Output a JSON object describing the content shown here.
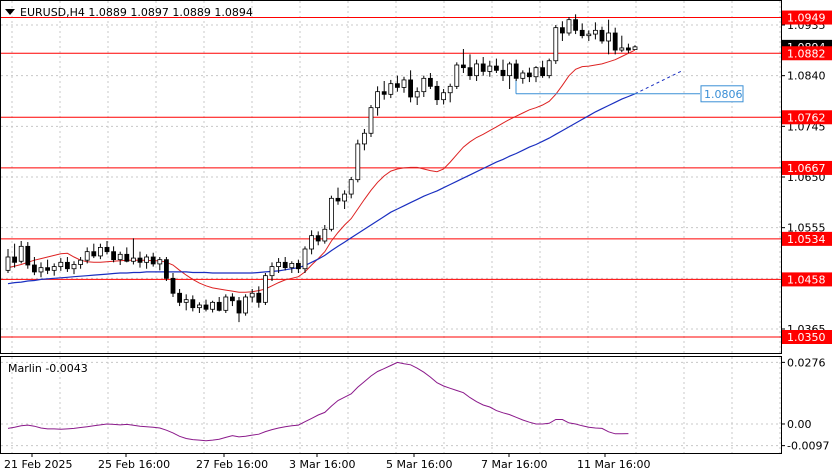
{
  "header": {
    "title": "EURUSD,H4 1.0889 1.0897 1.0889 1.0894"
  },
  "chart_data": [
    {
      "type": "candlestick",
      "symbol": "EURUSD",
      "timeframe": "H4",
      "ylim": [
        1.032,
        1.098
      ],
      "x_ticks": [
        "21 Feb 2025",
        "25 Feb 16:00",
        "27 Feb 16:00",
        "3 Mar 16:00",
        "5 Mar 16:00",
        "7 Mar 16:00",
        "11 Mar 16:00"
      ],
      "y_ticks": [
        "1.0935",
        "1.0840",
        "1.0745",
        "1.0650",
        "1.0555",
        "1.0460",
        "1.0365"
      ],
      "current_price": "1.0894",
      "levels": [
        {
          "value": 1.0949,
          "label": "1.0949"
        },
        {
          "value": 1.0882,
          "label": "1.0882"
        },
        {
          "value": 1.0762,
          "label": "1.0762"
        },
        {
          "value": 1.0667,
          "label": "1.0667"
        },
        {
          "value": 1.0534,
          "label": "1.0534"
        },
        {
          "value": 1.0458,
          "label": "1.0458"
        },
        {
          "value": 1.035,
          "label": "1.0350"
        }
      ],
      "blue_target": {
        "value": 1.0806,
        "label": "1.0806"
      },
      "colors": {
        "level": "#ff0000",
        "red_ma": "#dd2222",
        "blue_ma": "#1a2fc0",
        "oscillator": "#8b1a8b",
        "candle_up": "#ffffff",
        "candle_down": "#000000"
      },
      "candles": [
        [
          1.0475,
          1.0515,
          1.047,
          1.05
        ],
        [
          1.05,
          1.0525,
          1.048,
          1.049
        ],
        [
          1.0492,
          1.053,
          1.0488,
          1.052
        ],
        [
          1.052,
          1.0528,
          1.0478,
          1.0485
        ],
        [
          1.0485,
          1.05,
          1.0466,
          1.0472
        ],
        [
          1.0472,
          1.049,
          1.0462,
          1.048
        ],
        [
          1.048,
          1.0495,
          1.0468,
          1.0475
        ],
        [
          1.0475,
          1.0488,
          1.0465,
          1.0482
        ],
        [
          1.0482,
          1.0498,
          1.0474,
          1.049
        ],
        [
          1.049,
          1.05,
          1.0472,
          1.0478
        ],
        [
          1.0478,
          1.0492,
          1.0468,
          1.0486
        ],
        [
          1.0486,
          1.05,
          1.0478,
          1.0494
        ],
        [
          1.0494,
          1.0518,
          1.0488,
          1.051
        ],
        [
          1.051,
          1.0525,
          1.0498,
          1.0502
        ],
        [
          1.0502,
          1.0525,
          1.0496,
          1.0518
        ],
        [
          1.0518,
          1.053,
          1.0505,
          1.051
        ],
        [
          1.051,
          1.052,
          1.049,
          1.0495
        ],
        [
          1.0495,
          1.051,
          1.0485,
          1.0505
        ],
        [
          1.0505,
          1.0518,
          1.049,
          1.0492
        ],
        [
          1.0492,
          1.0535,
          1.0486,
          1.0498
        ],
        [
          1.0498,
          1.051,
          1.048,
          1.049
        ],
        [
          1.049,
          1.0505,
          1.0478,
          1.05
        ],
        [
          1.05,
          1.0508,
          1.0482,
          1.0487
        ],
        [
          1.0487,
          1.05,
          1.0475,
          1.0495
        ],
        [
          1.0495,
          1.05,
          1.0455,
          1.046
        ],
        [
          1.046,
          1.047,
          1.0425,
          1.0432
        ],
        [
          1.0432,
          1.044,
          1.0408,
          1.0415
        ],
        [
          1.0415,
          1.043,
          1.04,
          1.042
        ],
        [
          1.042,
          1.0428,
          1.0398,
          1.0405
        ],
        [
          1.0405,
          1.0415,
          1.0395,
          1.041
        ],
        [
          1.041,
          1.042,
          1.0398,
          1.0402
        ],
        [
          1.0402,
          1.0418,
          1.0396,
          1.0415
        ],
        [
          1.0415,
          1.0425,
          1.0398,
          1.04
        ],
        [
          1.04,
          1.043,
          1.0395,
          1.0425
        ],
        [
          1.0425,
          1.0432,
          1.0408,
          1.0418
        ],
        [
          1.0418,
          1.0425,
          1.0378,
          1.0395
        ],
        [
          1.0395,
          1.043,
          1.039,
          1.0425
        ],
        [
          1.0425,
          1.044,
          1.0415,
          1.0432
        ],
        [
          1.0432,
          1.0445,
          1.0405,
          1.0415
        ],
        [
          1.0415,
          1.047,
          1.041,
          1.0465
        ],
        [
          1.0465,
          1.049,
          1.0455,
          1.0482
        ],
        [
          1.0482,
          1.0498,
          1.047,
          1.049
        ],
        [
          1.049,
          1.05,
          1.0475,
          1.048
        ],
        [
          1.048,
          1.0492,
          1.047,
          1.0488
        ],
        [
          1.0488,
          1.0495,
          1.047,
          1.0478
        ],
        [
          1.0478,
          1.052,
          1.047,
          1.0515
        ],
        [
          1.0515,
          1.055,
          1.0505,
          1.054
        ],
        [
          1.054,
          1.0548,
          1.0522,
          1.053
        ],
        [
          1.053,
          1.056,
          1.0525,
          1.0552
        ],
        [
          1.0552,
          1.0615,
          1.0548,
          1.061
        ],
        [
          1.061,
          1.063,
          1.0598,
          1.0605
        ],
        [
          1.0605,
          1.0625,
          1.059,
          1.0618
        ],
        [
          1.0618,
          1.065,
          1.061,
          1.0645
        ],
        [
          1.0645,
          1.072,
          1.064,
          1.0712
        ],
        [
          1.0712,
          1.074,
          1.07,
          1.0732
        ],
        [
          1.0732,
          1.0785,
          1.0725,
          1.078
        ],
        [
          1.078,
          1.082,
          1.0765,
          1.081
        ],
        [
          1.081,
          1.083,
          1.0795,
          1.0805
        ],
        [
          1.0805,
          1.0832,
          1.0798,
          1.0825
        ],
        [
          1.0825,
          1.084,
          1.081,
          1.0818
        ],
        [
          1.0818,
          1.0838,
          1.0808,
          1.0832
        ],
        [
          1.0832,
          1.085,
          1.079,
          1.08
        ],
        [
          1.08,
          1.0818,
          1.0785,
          1.081
        ],
        [
          1.081,
          1.084,
          1.08,
          1.0835
        ],
        [
          1.0835,
          1.0845,
          1.0815,
          1.082
        ],
        [
          1.082,
          1.083,
          1.0785,
          1.0795
        ],
        [
          1.0795,
          1.0815,
          1.0786,
          1.0808
        ],
        [
          1.0808,
          1.0825,
          1.079,
          1.082
        ],
        [
          1.082,
          1.0865,
          1.0815,
          1.086
        ],
        [
          1.086,
          1.089,
          1.0845,
          1.0855
        ],
        [
          1.0855,
          1.088,
          1.0832,
          1.084
        ],
        [
          1.084,
          1.087,
          1.083,
          1.0862
        ],
        [
          1.0862,
          1.0875,
          1.084,
          1.0848
        ],
        [
          1.0848,
          1.0868,
          1.0838,
          1.0858
        ],
        [
          1.0858,
          1.0872,
          1.0845,
          1.085
        ],
        [
          1.085,
          1.087,
          1.083,
          1.084
        ],
        [
          1.084,
          1.0866,
          1.0815,
          1.0862
        ],
        [
          1.0862,
          1.087,
          1.083,
          1.0835
        ],
        [
          1.0835,
          1.085,
          1.0825,
          1.0845
        ],
        [
          1.0845,
          1.0855,
          1.0828,
          1.0838
        ],
        [
          1.0838,
          1.0858,
          1.0828,
          1.0855
        ],
        [
          1.0855,
          1.0868,
          1.0836,
          1.084
        ],
        [
          1.084,
          1.0872,
          1.0835,
          1.0868
        ],
        [
          1.0868,
          1.0935,
          1.0862,
          1.093
        ],
        [
          1.093,
          1.0942,
          1.0905,
          1.092
        ],
        [
          1.092,
          1.095,
          1.0915,
          1.0945
        ],
        [
          1.0945,
          1.0955,
          1.0918,
          1.0925
        ],
        [
          1.0925,
          1.0938,
          1.091,
          1.0915
        ],
        [
          1.0915,
          1.0925,
          1.0905,
          1.0918
        ],
        [
          1.0918,
          1.094,
          1.0908,
          1.0925
        ],
        [
          1.0925,
          1.0932,
          1.09,
          1.0905
        ],
        [
          1.0905,
          1.0945,
          1.088,
          1.092
        ],
        [
          1.092,
          1.093,
          1.088,
          1.0888
        ],
        [
          1.0888,
          1.0915,
          1.0884,
          1.0892
        ],
        [
          1.0892,
          1.09,
          1.0882,
          1.0888
        ],
        [
          1.0889,
          1.0897,
          1.0889,
          1.0894
        ]
      ],
      "ma_red": [
        1.048,
        1.0483,
        1.0486,
        1.049,
        1.0494,
        1.0497,
        1.05,
        1.0503,
        1.0506,
        1.0507,
        1.05,
        1.0494,
        1.0491,
        1.049,
        1.049,
        1.0491,
        1.0492,
        1.0493,
        1.0494,
        1.0494,
        1.0494,
        1.0494,
        1.0493,
        1.0493,
        1.049,
        1.0485,
        1.0475,
        1.0466,
        1.0458,
        1.0451,
        1.0446,
        1.0442,
        1.044,
        1.0438,
        1.0436,
        1.0434,
        1.0434,
        1.0435,
        1.0437,
        1.044,
        1.0446,
        1.0452,
        1.0457,
        1.046,
        1.0463,
        1.0472,
        1.0485,
        1.0497,
        1.051,
        1.053,
        1.0546,
        1.056,
        1.0572,
        1.059,
        1.0608,
        1.0625,
        1.064,
        1.0652,
        1.0661,
        1.0665,
        1.0667,
        1.0668,
        1.0668,
        1.0665,
        1.0662,
        1.066,
        1.0665,
        1.0678,
        1.0692,
        1.0706,
        1.0716,
        1.0724,
        1.073,
        1.0737,
        1.0744,
        1.0751,
        1.0758,
        1.0764,
        1.077,
        1.0776,
        1.078,
        1.0785,
        1.0792,
        1.0805,
        1.0822,
        1.084,
        1.0852,
        1.0857,
        1.0858,
        1.086,
        1.0862,
        1.0866,
        1.087,
        1.0876,
        1.0882,
        1.0888
      ],
      "ma_blue": [
        1.045,
        1.0452,
        1.0453,
        1.0455,
        1.0456,
        1.0458,
        1.0459,
        1.046,
        1.0461,
        1.0462,
        1.0463,
        1.0464,
        1.0465,
        1.0466,
        1.0467,
        1.0468,
        1.0469,
        1.047,
        1.047,
        1.0471,
        1.0471,
        1.0472,
        1.0472,
        1.0472,
        1.0472,
        1.0472,
        1.0472,
        1.0472,
        1.0471,
        1.0471,
        1.0471,
        1.047,
        1.047,
        1.047,
        1.047,
        1.047,
        1.047,
        1.047,
        1.0471,
        1.0472,
        1.0473,
        1.0474,
        1.0476,
        1.0478,
        1.048,
        1.0484,
        1.049,
        1.0496,
        1.0503,
        1.0512,
        1.052,
        1.0528,
        1.0536,
        1.0544,
        1.0552,
        1.056,
        1.0568,
        1.0576,
        1.0584,
        1.059,
        1.0596,
        1.0602,
        1.0608,
        1.0614,
        1.0619,
        1.0624,
        1.063,
        1.0636,
        1.0642,
        1.0648,
        1.0654,
        1.066,
        1.0666,
        1.0672,
        1.0678,
        1.0683,
        1.0689,
        1.0694,
        1.07,
        1.0706,
        1.0711,
        1.0717,
        1.0723,
        1.073,
        1.0737,
        1.0744,
        1.0751,
        1.0758,
        1.0765,
        1.0772,
        1.0778,
        1.0784,
        1.079,
        1.0796,
        1.0801,
        1.0806
      ],
      "ma_blue_projection_end": 1.085
    },
    {
      "type": "line",
      "name": "Marlin",
      "label": "Marlin -0.0043",
      "ylim": [
        -0.013,
        0.03
      ],
      "y_ticks": [
        "0.0276",
        "0.00",
        "-0.0097"
      ],
      "current_label": "-0.0097",
      "values": [
        -0.002,
        -0.0015,
        -0.0008,
        -0.0005,
        -0.001,
        -0.0018,
        -0.0022,
        -0.0022,
        -0.0024,
        -0.0022,
        -0.002,
        -0.0016,
        -0.0012,
        -0.0008,
        -0.0004,
        0.0,
        -0.0002,
        -0.0004,
        -0.0002,
        -0.0006,
        -0.001,
        -0.0012,
        -0.0015,
        -0.0018,
        -0.0028,
        -0.004,
        -0.0055,
        -0.0065,
        -0.007,
        -0.0072,
        -0.0075,
        -0.0072,
        -0.0068,
        -0.006,
        -0.0052,
        -0.0058,
        -0.0055,
        -0.005,
        -0.0046,
        -0.0034,
        -0.0025,
        -0.0018,
        -0.0012,
        -0.0008,
        -0.0005,
        0.001,
        0.0025,
        0.004,
        0.0052,
        0.008,
        0.0105,
        0.012,
        0.0135,
        0.0165,
        0.019,
        0.0215,
        0.0235,
        0.0248,
        0.0262,
        0.0276,
        0.027,
        0.0265,
        0.025,
        0.0232,
        0.021,
        0.0185,
        0.017,
        0.016,
        0.015,
        0.014,
        0.0118,
        0.01,
        0.0085,
        0.0076,
        0.006,
        0.005,
        0.0042,
        0.003,
        0.0018,
        0.0008,
        0.0,
        0.0,
        0.0003,
        0.002,
        0.002,
        0.0005,
        0.0,
        -0.0008,
        -0.0015,
        -0.0018,
        -0.002,
        -0.0035,
        -0.0044,
        -0.0044,
        -0.0043
      ]
    }
  ]
}
